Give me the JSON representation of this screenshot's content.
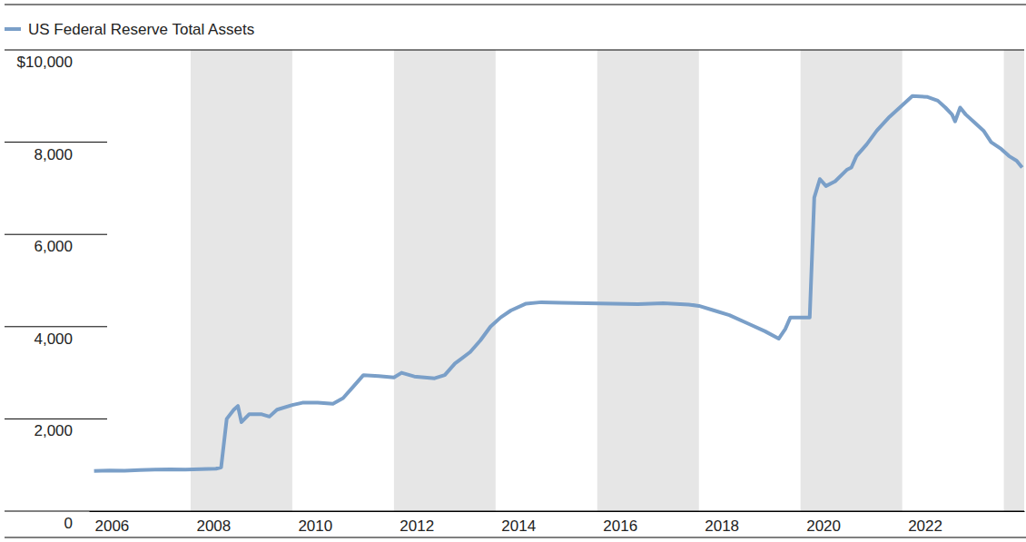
{
  "chart_data": {
    "type": "line",
    "x": [
      2006.1,
      2006.4,
      2006.7,
      2007.0,
      2007.3,
      2007.6,
      2007.9,
      2008.2,
      2008.5,
      2008.6,
      2008.71,
      2008.85,
      2008.93,
      2009.0,
      2009.15,
      2009.4,
      2009.55,
      2009.7,
      2010.0,
      2010.2,
      2010.5,
      2010.8,
      2011.0,
      2011.2,
      2011.4,
      2011.7,
      2012.0,
      2012.15,
      2012.4,
      2012.8,
      2013.0,
      2013.2,
      2013.5,
      2013.7,
      2013.9,
      2014.1,
      2014.3,
      2014.6,
      2014.9,
      2015.3,
      2015.8,
      2016.3,
      2016.8,
      2017.3,
      2017.8,
      2018.0,
      2018.3,
      2018.6,
      2019.0,
      2019.3,
      2019.57,
      2019.7,
      2019.8,
      2020.0,
      2020.18,
      2020.27,
      2020.38,
      2020.5,
      2020.68,
      2020.91,
      2021.0,
      2021.1,
      2021.3,
      2021.5,
      2021.75,
      2022.0,
      2022.2,
      2022.5,
      2022.7,
      2022.85,
      2022.98,
      2023.04,
      2023.14,
      2023.25,
      2023.4,
      2023.6,
      2023.75,
      2023.95,
      2024.1,
      2024.25,
      2024.36
    ],
    "series": [
      {
        "name": "US Federal Reserve Total Assets",
        "color": "#7a9fc8",
        "values": [
          870,
          880,
          875,
          890,
          900,
          905,
          900,
          910,
          920,
          950,
          2000,
          2200,
          2280,
          1930,
          2100,
          2100,
          2050,
          2200,
          2300,
          2350,
          2350,
          2330,
          2450,
          2700,
          2950,
          2930,
          2900,
          3000,
          2920,
          2880,
          2950,
          3200,
          3450,
          3700,
          4000,
          4200,
          4350,
          4500,
          4530,
          4520,
          4510,
          4500,
          4490,
          4510,
          4480,
          4450,
          4350,
          4250,
          4050,
          3900,
          3740,
          3950,
          4200,
          4200,
          4200,
          6800,
          7200,
          7050,
          7150,
          7400,
          7450,
          7700,
          7950,
          8250,
          8550,
          8800,
          9000,
          8980,
          8900,
          8750,
          8600,
          8450,
          8750,
          8600,
          8450,
          8250,
          8000,
          7850,
          7700,
          7600,
          7450
        ]
      }
    ],
    "xlim": [
      2006,
      2024.4
    ],
    "xticks": [
      2006,
      2008,
      2010,
      2012,
      2014,
      2016,
      2018,
      2020,
      2022
    ],
    "ylim": [
      0,
      10000
    ],
    "yticks": [
      0,
      {
        "value": 2000,
        "label": "2,000"
      },
      {
        "value": 4000,
        "label": "4,000"
      },
      {
        "value": 6000,
        "label": "6,000"
      },
      {
        "value": 8000,
        "label": "8,000"
      },
      {
        "value": 10000,
        "label": "$10,000"
      }
    ],
    "legend": "top-left"
  }
}
